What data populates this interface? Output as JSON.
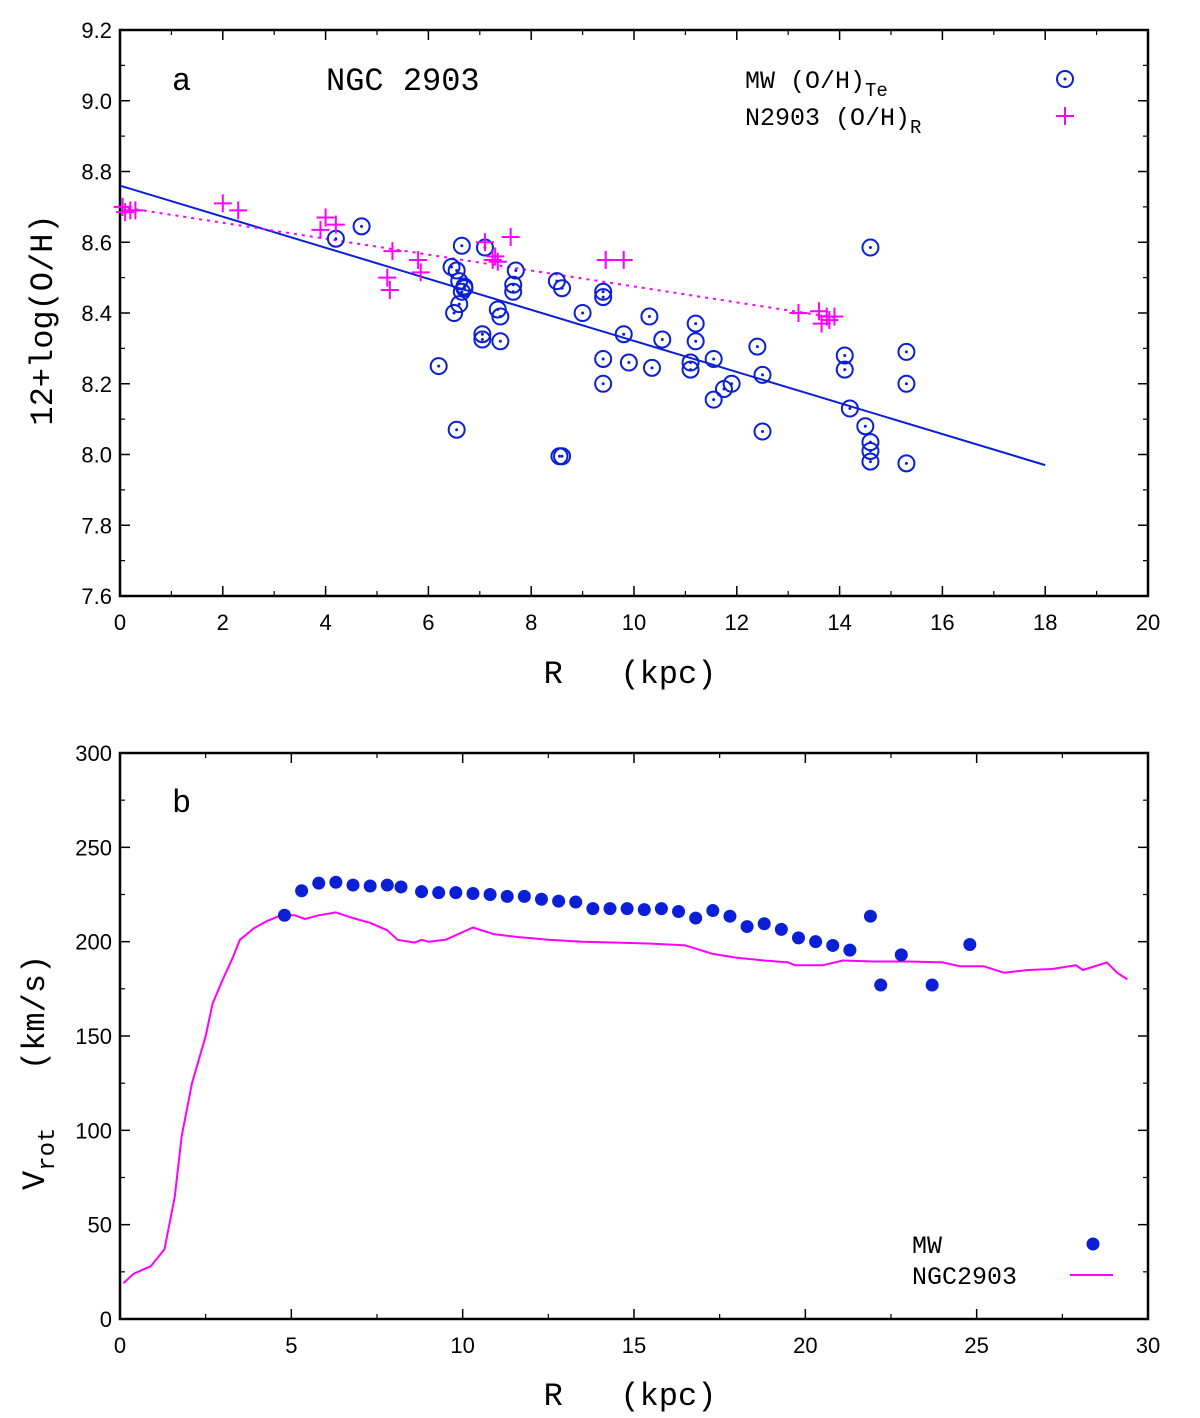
{
  "colors": {
    "mw": "#0a1fd6",
    "ngc": "#ff00ff",
    "axis": "#000000"
  },
  "chart_data": [
    {
      "id": "panel-a",
      "type": "scatter",
      "panel_letter": "a",
      "title": "NGC 2903",
      "xlabel": "R   (kpc)",
      "ylabel": "12+log(O/H)",
      "xlim": [
        0,
        20
      ],
      "ylim": [
        7.6,
        9.2
      ],
      "xticks": [
        0,
        2,
        4,
        6,
        8,
        10,
        12,
        14,
        16,
        18,
        20
      ],
      "yticks": [
        7.6,
        7.8,
        8.0,
        8.2,
        8.4,
        8.6,
        8.8,
        9.0,
        9.2
      ],
      "legend": [
        {
          "base": "MW (O/H)",
          "sub": "Te",
          "marker": "circle-dot"
        },
        {
          "base": "N2903 (O/H)",
          "sub": "R",
          "marker": "plus"
        }
      ],
      "series": [
        {
          "name": "MW (O/H)Te",
          "marker": "circle-dot",
          "color_key": "mw",
          "points": [
            [
              4.2,
              8.61
            ],
            [
              4.7,
              8.645
            ],
            [
              6.2,
              8.25
            ],
            [
              6.45,
              8.53
            ],
            [
              6.5,
              8.4
            ],
            [
              6.55,
              8.07
            ],
            [
              6.55,
              8.52
            ],
            [
              6.6,
              8.49
            ],
            [
              6.6,
              8.425
            ],
            [
              6.65,
              8.59
            ],
            [
              6.65,
              8.46
            ],
            [
              6.7,
              8.475
            ],
            [
              6.7,
              8.47
            ],
            [
              7.05,
              8.34
            ],
            [
              7.05,
              8.325
            ],
            [
              7.1,
              8.585
            ],
            [
              7.35,
              8.41
            ],
            [
              7.4,
              8.39
            ],
            [
              7.4,
              8.32
            ],
            [
              7.65,
              8.48
            ],
            [
              7.65,
              8.46
            ],
            [
              7.7,
              8.52
            ],
            [
              8.5,
              8.49
            ],
            [
              8.55,
              7.995
            ],
            [
              8.6,
              7.995
            ],
            [
              8.6,
              8.47
            ],
            [
              9.0,
              8.4
            ],
            [
              9.4,
              8.46
            ],
            [
              9.4,
              8.445
            ],
            [
              9.4,
              8.27
            ],
            [
              9.4,
              8.2
            ],
            [
              9.8,
              8.34
            ],
            [
              9.9,
              8.26
            ],
            [
              10.3,
              8.39
            ],
            [
              10.35,
              8.245
            ],
            [
              10.55,
              8.325
            ],
            [
              11.1,
              8.26
            ],
            [
              11.1,
              8.24
            ],
            [
              11.2,
              8.37
            ],
            [
              11.2,
              8.32
            ],
            [
              11.55,
              8.27
            ],
            [
              11.55,
              8.155
            ],
            [
              11.75,
              8.185
            ],
            [
              11.9,
              8.2
            ],
            [
              12.4,
              8.305
            ],
            [
              12.5,
              8.225
            ],
            [
              12.5,
              8.065
            ],
            [
              14.1,
              8.28
            ],
            [
              14.1,
              8.24
            ],
            [
              14.2,
              8.13
            ],
            [
              14.5,
              8.08
            ],
            [
              14.6,
              8.585
            ],
            [
              14.6,
              8.035
            ],
            [
              14.6,
              8.01
            ],
            [
              14.6,
              7.98
            ],
            [
              15.3,
              8.29
            ],
            [
              15.3,
              8.2
            ],
            [
              15.3,
              7.975
            ]
          ],
          "fit_line": {
            "x": [
              0,
              18
            ],
            "y": [
              8.76,
              7.97
            ]
          }
        },
        {
          "name": "N2903 (O/H)R",
          "marker": "plus",
          "color_key": "ngc",
          "points": [
            [
              0.05,
              8.7
            ],
            [
              0.1,
              8.685
            ],
            [
              0.2,
              8.69
            ],
            [
              0.3,
              8.69
            ],
            [
              2.0,
              8.71
            ],
            [
              2.3,
              8.69
            ],
            [
              3.9,
              8.635
            ],
            [
              4.0,
              8.67
            ],
            [
              4.2,
              8.65
            ],
            [
              5.2,
              8.5
            ],
            [
              5.25,
              8.465
            ],
            [
              5.3,
              8.575
            ],
            [
              5.8,
              8.55
            ],
            [
              5.85,
              8.515
            ],
            [
              7.1,
              8.6
            ],
            [
              7.25,
              8.55
            ],
            [
              7.3,
              8.56
            ],
            [
              7.35,
              8.545
            ],
            [
              7.6,
              8.615
            ],
            [
              9.45,
              8.55
            ],
            [
              9.8,
              8.55
            ],
            [
              13.2,
              8.4
            ],
            [
              13.6,
              8.405
            ],
            [
              13.65,
              8.37
            ],
            [
              13.75,
              8.39
            ],
            [
              13.8,
              8.38
            ],
            [
              13.9,
              8.39
            ]
          ],
          "fit_line": {
            "x": [
              0,
              14
            ],
            "y": [
              8.7,
              8.385
            ]
          }
        }
      ]
    },
    {
      "id": "panel-b",
      "type": "scatter",
      "panel_letter": "b",
      "xlabel": "R   (kpc)",
      "ylabel_base": "V",
      "ylabel_sub": "rot",
      "ylabel_unit": "(km/s)",
      "xlim": [
        0,
        30
      ],
      "ylim": [
        0,
        300
      ],
      "xticks": [
        0,
        5,
        10,
        15,
        20,
        25,
        30
      ],
      "yticks": [
        0,
        50,
        100,
        150,
        200,
        250,
        300
      ],
      "legend": [
        {
          "label": "MW",
          "marker": "filled-circle"
        },
        {
          "label": "NGC2903",
          "marker": "line"
        }
      ],
      "series": [
        {
          "name": "MW",
          "marker": "filled-circle",
          "color_key": "mw",
          "points": [
            [
              4.8,
              214
            ],
            [
              5.3,
              227
            ],
            [
              5.8,
              231
            ],
            [
              6.3,
              231.5
            ],
            [
              6.8,
              230
            ],
            [
              7.3,
              229.5
            ],
            [
              7.8,
              230
            ],
            [
              8.2,
              229
            ],
            [
              8.8,
              226.5
            ],
            [
              9.3,
              226
            ],
            [
              9.8,
              226
            ],
            [
              10.3,
              225.5
            ],
            [
              10.8,
              225
            ],
            [
              11.3,
              224
            ],
            [
              11.8,
              224
            ],
            [
              12.3,
              222.5
            ],
            [
              12.8,
              221.5
            ],
            [
              13.3,
              221
            ],
            [
              13.8,
              217.5
            ],
            [
              14.3,
              217.5
            ],
            [
              14.8,
              217.5
            ],
            [
              15.3,
              217
            ],
            [
              15.8,
              217.5
            ],
            [
              16.3,
              216
            ],
            [
              16.8,
              212.5
            ],
            [
              17.3,
              216.5
            ],
            [
              17.8,
              213.5
            ],
            [
              18.3,
              208
            ],
            [
              18.8,
              209.5
            ],
            [
              19.3,
              206.5
            ],
            [
              19.8,
              202
            ],
            [
              20.3,
              200
            ],
            [
              20.8,
              198
            ],
            [
              21.3,
              195.5
            ],
            [
              21.9,
              213.5
            ],
            [
              22.2,
              177
            ],
            [
              22.8,
              193
            ],
            [
              23.7,
              177
            ],
            [
              24.8,
              198.5
            ]
          ]
        },
        {
          "name": "NGC2903",
          "marker": "line",
          "color_key": "ngc",
          "points": [
            [
              0.1,
              19
            ],
            [
              0.4,
              24
            ],
            [
              0.9,
              28
            ],
            [
              1.3,
              37
            ],
            [
              1.6,
              65
            ],
            [
              1.8,
              97
            ],
            [
              2.1,
              125
            ],
            [
              2.5,
              150
            ],
            [
              2.7,
              167
            ],
            [
              3.0,
              180
            ],
            [
              3.3,
              192
            ],
            [
              3.5,
              201
            ],
            [
              3.9,
              207
            ],
            [
              4.3,
              211
            ],
            [
              4.7,
              214
            ],
            [
              5.1,
              214
            ],
            [
              5.4,
              212
            ],
            [
              5.8,
              214
            ],
            [
              6.3,
              215.5
            ],
            [
              6.8,
              212.5
            ],
            [
              7.3,
              210
            ],
            [
              7.8,
              206
            ],
            [
              8.1,
              201
            ],
            [
              8.6,
              199.5
            ],
            [
              8.8,
              201
            ],
            [
              9.0,
              200
            ],
            [
              9.5,
              201
            ],
            [
              10.3,
              207.5
            ],
            [
              10.9,
              204
            ],
            [
              11.6,
              202.5
            ],
            [
              12.5,
              201
            ],
            [
              13.5,
              200
            ],
            [
              14.5,
              199.5
            ],
            [
              15.5,
              199
            ],
            [
              16.5,
              198
            ],
            [
              17.3,
              193.5
            ],
            [
              18.0,
              191.5
            ],
            [
              18.8,
              190
            ],
            [
              19.5,
              189
            ],
            [
              19.7,
              187.5
            ],
            [
              20.5,
              187.5
            ],
            [
              21.1,
              190
            ],
            [
              22.0,
              189.5
            ],
            [
              23.0,
              189.5
            ],
            [
              24.0,
              189
            ],
            [
              24.5,
              187
            ],
            [
              25.2,
              187
            ],
            [
              25.8,
              183.5
            ],
            [
              26.5,
              185
            ],
            [
              27.2,
              185.5
            ],
            [
              27.9,
              187.5
            ],
            [
              28.1,
              185
            ],
            [
              28.8,
              189
            ],
            [
              29.1,
              183.5
            ],
            [
              29.4,
              180
            ]
          ]
        }
      ]
    }
  ]
}
